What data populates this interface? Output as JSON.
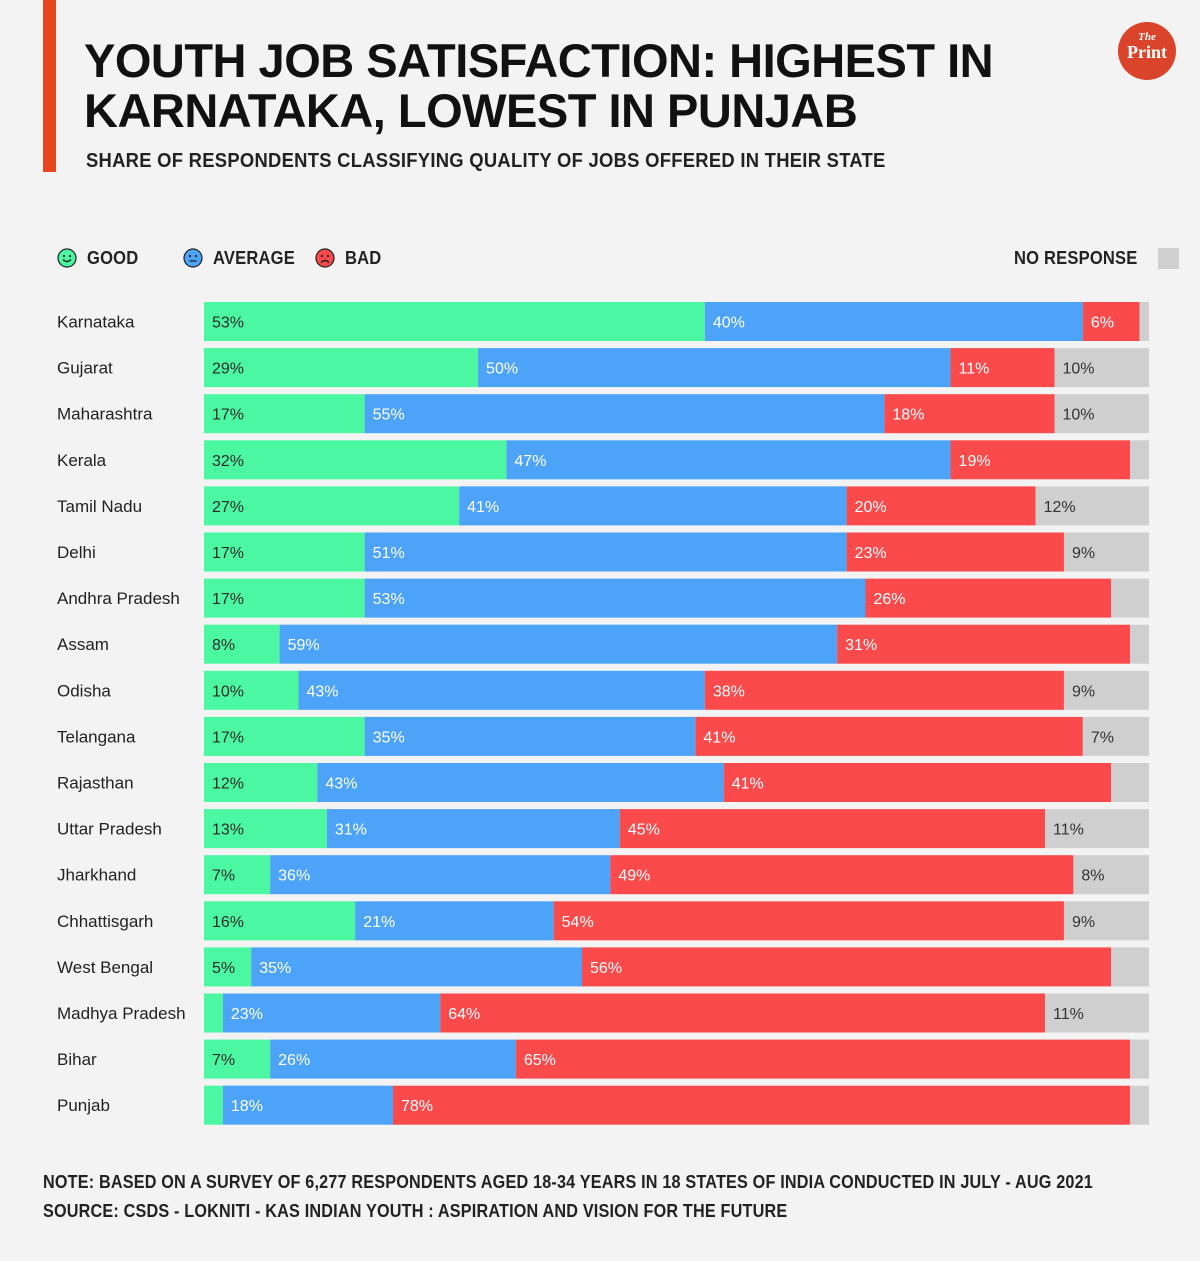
{
  "header": {
    "title": "YOUTH JOB SATISFACTION: HIGHEST IN KARNATAKA, LOWEST IN PUNJAB",
    "subtitle": "SHARE OF RESPONDENTS CLASSIFYING QUALITY OF JOBS OFFERED IN THEIR STATE",
    "logo_top": "The",
    "logo_main": "Print"
  },
  "legend": {
    "good": "GOOD",
    "average": "AVERAGE",
    "bad": "BAD",
    "no_response": "NO RESPONSE"
  },
  "colors": {
    "good": "#4cf7a2",
    "average": "#4da3f7",
    "bad": "#fa4a4c",
    "no_response": "#cfcfcf",
    "accent": "#e8461f"
  },
  "chart_data": {
    "type": "bar",
    "orientation": "horizontal",
    "stacked": true,
    "title": "YOUTH JOB SATISFACTION: HIGHEST IN KARNATAKA, LOWEST IN PUNJAB",
    "subtitle": "SHARE OF RESPONDENTS CLASSIFYING QUALITY OF JOBS OFFERED IN THEIR STATE",
    "xlim": [
      0,
      100
    ],
    "categories": [
      "Karnataka",
      "Gujarat",
      "Maharashtra",
      "Kerala",
      "Tamil Nadu",
      "Delhi",
      "Andhra Pradesh",
      "Assam",
      "Odisha",
      "Telangana",
      "Rajasthan",
      "Uttar Pradesh",
      "Jharkhand",
      "Chhattisgarh",
      "West Bengal",
      "Madhya Pradesh",
      "Bihar",
      "Punjab"
    ],
    "series": [
      {
        "name": "GOOD",
        "key": "good",
        "values": [
          53,
          29,
          17,
          32,
          27,
          17,
          17,
          8,
          10,
          17,
          12,
          13,
          7,
          16,
          5,
          2,
          7,
          2
        ],
        "labels": [
          "53%",
          "29%",
          "17%",
          "32%",
          "27%",
          "17%",
          "17%",
          "8%",
          "10%",
          "17%",
          "12%",
          "13%",
          "7%",
          "16%",
          "5%",
          "",
          "7%",
          ""
        ]
      },
      {
        "name": "AVERAGE",
        "key": "average",
        "values": [
          40,
          50,
          55,
          47,
          41,
          51,
          53,
          59,
          43,
          35,
          43,
          31,
          36,
          21,
          35,
          23,
          26,
          18
        ],
        "labels": [
          "40%",
          "50%",
          "55%",
          "47%",
          "41%",
          "51%",
          "53%",
          "59%",
          "43%",
          "35%",
          "43%",
          "31%",
          "36%",
          "21%",
          "35%",
          "23%",
          "26%",
          "18%"
        ]
      },
      {
        "name": "BAD",
        "key": "bad",
        "values": [
          6,
          11,
          18,
          19,
          20,
          23,
          26,
          31,
          38,
          41,
          41,
          45,
          49,
          54,
          56,
          64,
          65,
          78
        ],
        "labels": [
          "6%",
          "11%",
          "18%",
          "19%",
          "20%",
          "23%",
          "26%",
          "31%",
          "38%",
          "41%",
          "41%",
          "45%",
          "49%",
          "54%",
          "56%",
          "64%",
          "65%",
          "78%"
        ]
      },
      {
        "name": "NO RESPONSE",
        "key": "no_response",
        "values": [
          1,
          10,
          10,
          2,
          12,
          9,
          4,
          2,
          9,
          7,
          4,
          11,
          8,
          9,
          4,
          11,
          2,
          2
        ],
        "labels": [
          "",
          "10%",
          "10%",
          "",
          "12%",
          "9%",
          "",
          "",
          "9%",
          "7%",
          "",
          "11%",
          "8%",
          "9%",
          "",
          "11%",
          "",
          ""
        ]
      }
    ]
  },
  "footer": {
    "note": "NOTE: BASED ON A SURVEY OF 6,277 RESPONDENTS AGED 18-34 YEARS IN 18 STATES OF INDIA CONDUCTED IN JULY - AUG 2021",
    "source": "SOURCE: CSDS - LOKNITI - KAS INDIAN YOUTH : ASPIRATION AND VISION FOR THE FUTURE"
  }
}
